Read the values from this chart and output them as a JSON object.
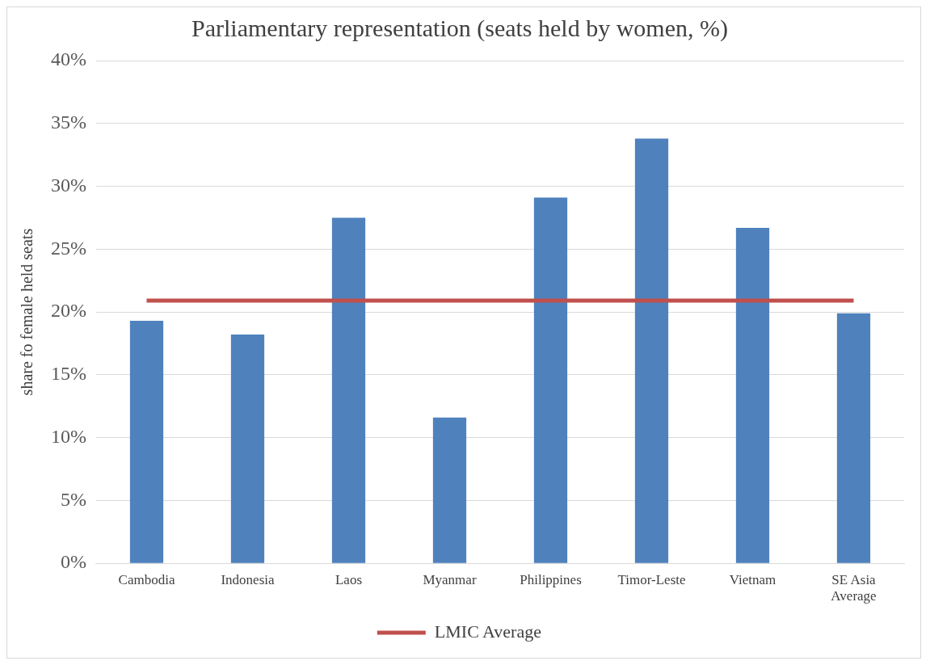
{
  "chart_data": {
    "type": "bar",
    "title": "Parliamentary representation (seats held by women, %)",
    "ylabel": "share fo female held seats",
    "categories": [
      "Cambodia",
      "Indonesia",
      "Laos",
      "Myanmar",
      "Philippines",
      "Timor-Leste",
      "Vietnam",
      "SE Asia Average"
    ],
    "series": [
      {
        "color": "#4f81bd",
        "values": [
          19.3,
          18.2,
          27.5,
          11.6,
          29.1,
          33.8,
          26.7,
          19.9
        ]
      },
      {
        "type": "line",
        "name": "LMIC Average",
        "color": "#c0504d",
        "values": [
          20.9,
          20.9,
          20.9,
          20.9,
          20.9,
          20.9,
          20.9,
          20.9
        ]
      }
    ],
    "ylim": [
      0,
      40
    ],
    "yticks": [
      {
        "value": 0,
        "label": "0%"
      },
      {
        "value": 5,
        "label": "5%"
      },
      {
        "value": 10,
        "label": "10%"
      },
      {
        "value": 15,
        "label": "15%"
      },
      {
        "value": 20,
        "label": "20%"
      },
      {
        "value": 25,
        "label": "25%"
      },
      {
        "value": 30,
        "label": "30%"
      },
      {
        "value": 35,
        "label": "35%"
      },
      {
        "value": 40,
        "label": "40%"
      }
    ],
    "grid": "y",
    "legend": "bottom",
    "marker": "none"
  }
}
